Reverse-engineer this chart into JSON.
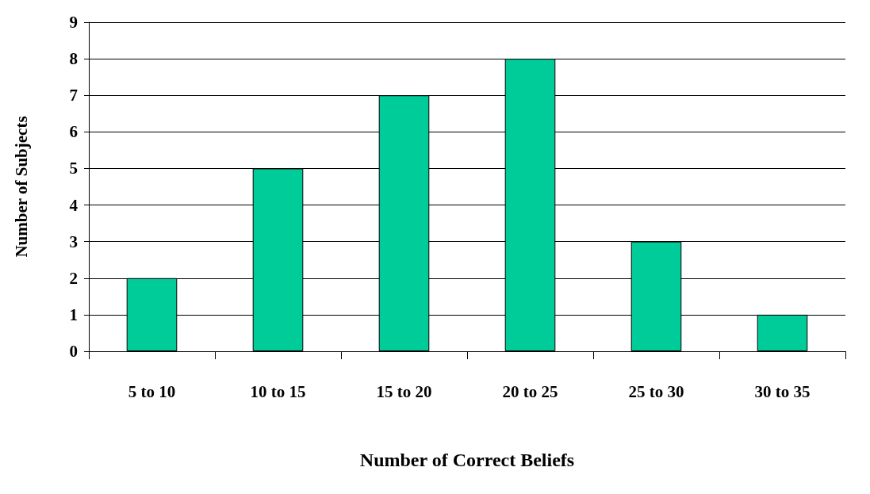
{
  "chart_data": {
    "type": "bar",
    "xlabel": "Number of Correct Beliefs",
    "ylabel": "Number of Subjects",
    "categories": [
      "5 to 10",
      "10 to 15",
      "15 to 20",
      "20 to 25",
      "25 to 30",
      "30 to 35"
    ],
    "values": [
      2,
      5,
      7,
      8,
      3,
      1
    ],
    "color": "#00cc99",
    "ylim": [
      0,
      9
    ],
    "yticks": [
      0,
      1,
      2,
      3,
      4,
      5,
      6,
      7,
      8,
      9
    ],
    "grid": "y"
  }
}
